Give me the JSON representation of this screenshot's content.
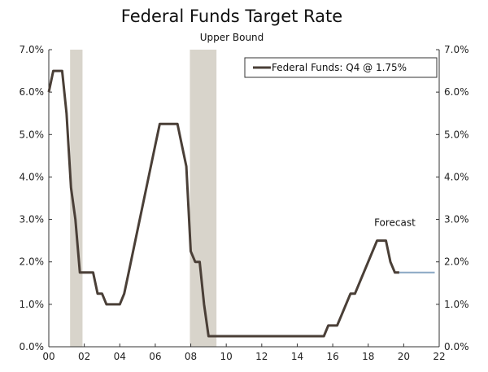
{
  "chart_data": {
    "type": "line",
    "title": "Federal Funds Target Rate",
    "subtitle": "Upper Bound",
    "xlabel": "",
    "ylabel": "",
    "xlim": [
      2000,
      2022
    ],
    "ylim": [
      0,
      7
    ],
    "x_ticks": [
      2000,
      2002,
      2004,
      2006,
      2008,
      2010,
      2012,
      2014,
      2016,
      2018,
      2020,
      2022
    ],
    "x_tick_labels": [
      "00",
      "02",
      "04",
      "06",
      "08",
      "10",
      "12",
      "14",
      "16",
      "18",
      "20",
      "22"
    ],
    "y_ticks": [
      0,
      1,
      2,
      3,
      4,
      5,
      6,
      7
    ],
    "y_tick_labels": [
      "0.0%",
      "1.0%",
      "2.0%",
      "3.0%",
      "4.0%",
      "5.0%",
      "6.0%",
      "7.0%"
    ],
    "grid": false,
    "legend": {
      "label": "Federal Funds: Q4 @ 1.75%",
      "placement": "top-right"
    },
    "annotations": [
      {
        "text": "Forecast",
        "x": 2019.5,
        "y": 2.85
      }
    ],
    "recessions": [
      {
        "start": 2001.2,
        "end": 2001.9
      },
      {
        "start": 2007.95,
        "end": 2009.45
      }
    ],
    "colors": {
      "actual": "#4a3f37",
      "forecast": "#8aa8c4",
      "recession": "#d8d4cb"
    },
    "series": [
      {
        "name": "Federal Funds",
        "x": [
          2000.0,
          2000.25,
          2000.45,
          2000.75,
          2001.0,
          2001.25,
          2001.5,
          2001.75,
          2002.0,
          2002.25,
          2002.5,
          2002.75,
          2003.0,
          2003.25,
          2003.5,
          2004.0,
          2004.25,
          2004.5,
          2005.0,
          2005.5,
          2006.0,
          2006.25,
          2006.5,
          2007.0,
          2007.25,
          2007.5,
          2007.75,
          2008.0,
          2008.25,
          2008.5,
          2008.75,
          2009.0,
          2010.0,
          2012.0,
          2014.0,
          2015.5,
          2015.75,
          2016.25,
          2016.5,
          2017.0,
          2017.25,
          2017.5,
          2018.0,
          2018.5,
          2018.75,
          2019.0,
          2019.25,
          2019.5,
          2019.75
        ],
        "values": [
          6.0,
          6.5,
          6.5,
          6.5,
          5.5,
          3.75,
          3.0,
          1.75,
          1.75,
          1.75,
          1.75,
          1.25,
          1.25,
          1.0,
          1.0,
          1.0,
          1.25,
          1.75,
          2.75,
          3.75,
          4.75,
          5.25,
          5.25,
          5.25,
          5.25,
          4.75,
          4.25,
          2.25,
          2.0,
          2.0,
          1.0,
          0.25,
          0.25,
          0.25,
          0.25,
          0.25,
          0.5,
          0.5,
          0.75,
          1.25,
          1.25,
          1.5,
          2.0,
          2.5,
          2.5,
          2.5,
          2.0,
          1.75,
          1.75
        ]
      },
      {
        "name": "Forecast",
        "x": [
          2019.75,
          2020.0,
          2021.0,
          2021.75
        ],
        "values": [
          1.75,
          1.75,
          1.75,
          1.75
        ]
      }
    ]
  }
}
